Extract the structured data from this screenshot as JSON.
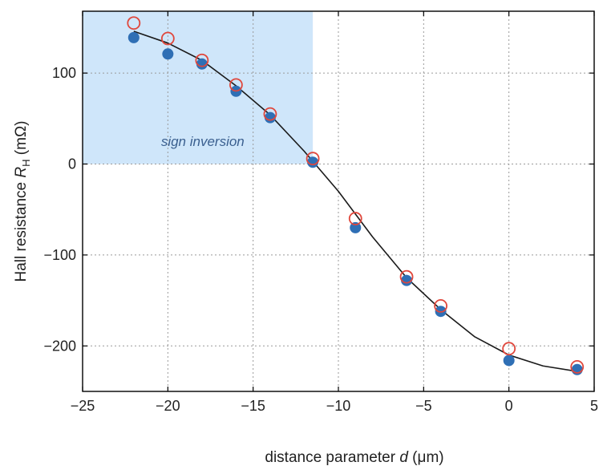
{
  "chart_data": {
    "type": "scatter",
    "xlabel": "distance parameter d (μm)",
    "ylabel": "Hall resistance R_H (mΩ)",
    "xlim": [
      -25,
      5
    ],
    "ylim": [
      -250,
      168
    ],
    "xticks": [
      -25,
      -20,
      -15,
      -10,
      -5,
      0,
      5
    ],
    "yticks": [
      100,
      0,
      -100,
      -200
    ],
    "x_tick_labels": [
      "−25",
      "−20",
      "−15",
      "−10",
      "−5",
      "0",
      "5"
    ],
    "y_tick_labels": [
      "100",
      "0",
      "−100",
      "−200"
    ],
    "grid": true,
    "annotations": [
      {
        "text": "sign inversion",
        "type": "shaded-region",
        "x_range": [
          -25,
          -11.5
        ],
        "y_range": [
          0,
          168
        ],
        "color": "#cfe6fa"
      }
    ],
    "series": [
      {
        "style": "filled-circle",
        "color": "#2f6fb5",
        "x": [
          -22,
          -20,
          -18,
          -16,
          -14,
          -11.5,
          -9,
          -6,
          -4,
          0,
          4
        ],
        "y": [
          139,
          121,
          110,
          80,
          51,
          2,
          -70,
          -128,
          -162,
          -216,
          -226
        ]
      },
      {
        "style": "open-circle",
        "color": "#e0473c",
        "x": [
          -22,
          -20,
          -18,
          -16,
          -14,
          -11.5,
          -9,
          -6,
          -4,
          0,
          4
        ],
        "y": [
          155,
          138,
          114,
          87,
          55,
          6,
          -60,
          -124,
          -156,
          -203,
          -223
        ]
      },
      {
        "style": "line",
        "color": "#1a1a1a",
        "x": [
          -22,
          -20,
          -18,
          -16,
          -14,
          -12,
          -11.5,
          -10,
          -9,
          -8,
          -6,
          -4,
          -2,
          0,
          2,
          4
        ],
        "y": [
          146,
          133,
          114,
          86,
          54,
          14,
          3,
          -30,
          -55,
          -80,
          -125,
          -160,
          -190,
          -210,
          -222,
          -228
        ]
      }
    ]
  }
}
